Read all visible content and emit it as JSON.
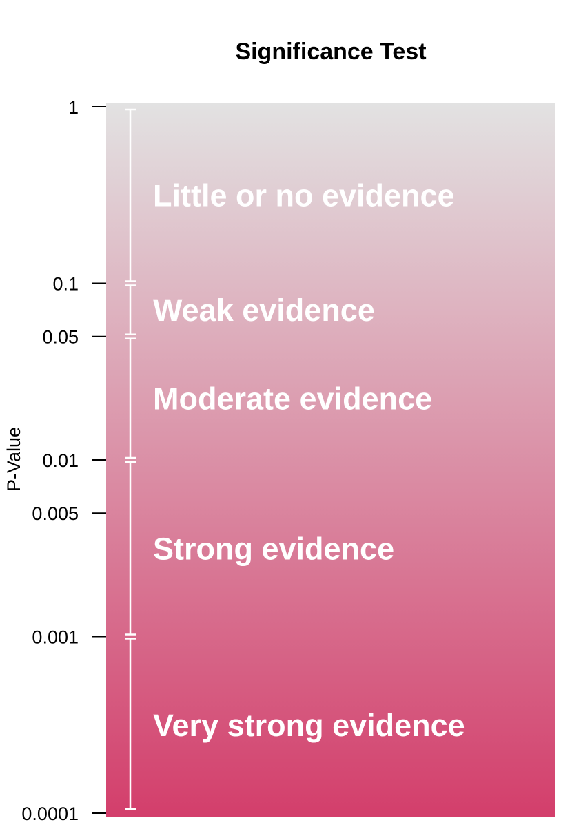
{
  "chart_data": {
    "type": "bar",
    "title": "Significance Test",
    "xlabel": "",
    "ylabel": "P-Value",
    "y_scale": "log",
    "ylim": [
      0.0001,
      1
    ],
    "y_ticks": [
      {
        "value": 1,
        "label": "1"
      },
      {
        "value": 0.1,
        "label": "0.1"
      },
      {
        "value": 0.05,
        "label": "0.05"
      },
      {
        "value": 0.01,
        "label": "0.01"
      },
      {
        "value": 0.005,
        "label": "0.005"
      },
      {
        "value": 0.001,
        "label": "0.001"
      },
      {
        "value": 0.0001,
        "label": "0.0001"
      }
    ],
    "bands": [
      {
        "label": "Little or no evidence",
        "from": 0.1,
        "to": 1
      },
      {
        "label": "Weak evidence",
        "from": 0.05,
        "to": 0.1
      },
      {
        "label": "Moderate evidence",
        "from": 0.01,
        "to": 0.05
      },
      {
        "label": "Strong evidence",
        "from": 0.001,
        "to": 0.01
      },
      {
        "label": "Very strong evidence",
        "from": 0.0001,
        "to": 0.001
      }
    ],
    "gradient_colors": {
      "top": "#e2e2e2",
      "bottom": "#d33e6b"
    },
    "band_text_color": "#ffffff",
    "grid": false
  }
}
